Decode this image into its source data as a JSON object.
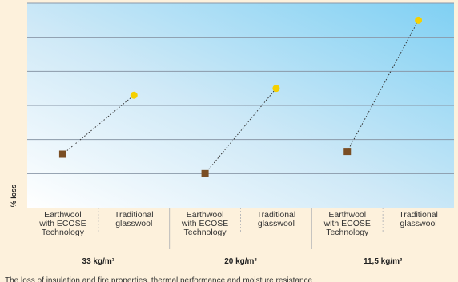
{
  "chart_data": {
    "type": "scatter",
    "ylabel": "% loss",
    "xlabel": "",
    "grid": true,
    "ylim": [
      0,
      6
    ],
    "categories": [
      "Earthwool with ECOSE Technology",
      "Traditional glasswool",
      "Earthwool with ECOSE Technology",
      "Traditional glasswool",
      "Earthwool with ECOSE Technology",
      "Traditional glasswool"
    ],
    "category_lines": [
      [
        "Earthwool",
        "with ECOSE",
        "Technology"
      ],
      [
        "Traditional",
        "glasswool"
      ],
      [
        "Earthwool",
        "with ECOSE",
        "Technology"
      ],
      [
        "Traditional",
        "glasswool"
      ],
      [
        "Earthwool",
        "with ECOSE",
        "Technology"
      ],
      [
        "Traditional",
        "glasswool"
      ]
    ],
    "groups": [
      "33 kg/m³",
      "20 kg/m³",
      "11,5 kg/m³"
    ],
    "series": [
      {
        "marker": "square",
        "color": "#7a4e24",
        "values": [
          1.57,
          1.0,
          1.65
        ]
      },
      {
        "marker": "circle",
        "color": "#f5d000",
        "values": [
          3.3,
          3.5,
          5.5
        ]
      }
    ]
  },
  "footer": "The loss of insulation and fire properties, thermal performance and moisture resistance"
}
